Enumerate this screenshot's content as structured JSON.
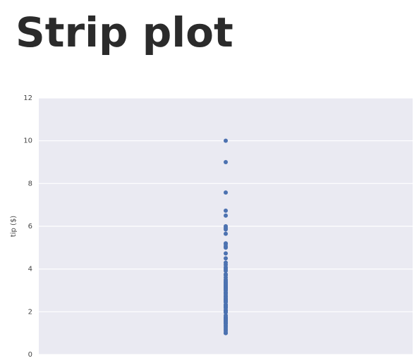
{
  "chart_data": {
    "type": "strip",
    "title": "Strip plot",
    "ylabel": "tip ($)",
    "values": [
      10,
      9,
      7.58,
      6.73,
      6.5,
      6,
      5.92,
      5.85,
      5.65,
      5.2,
      5.17,
      5.07,
      5,
      4.73,
      4.5,
      4.3,
      4.2,
      4.08,
      4,
      3.92,
      3.76,
      3.71,
      3.6,
      3.5,
      3.48,
      3.41,
      3.39,
      3.35,
      3.31,
      3.27,
      3.23,
      3.21,
      3.18,
      3.15,
      3.12,
      3.11,
      3.09,
      3.08,
      3.07,
      3.06,
      3.02,
      3,
      2.92,
      2.88,
      2.83,
      2.75,
      2.72,
      2.71,
      2.64,
      2.6,
      2.56,
      2.55,
      2.54,
      2.5,
      2.47,
      2.45,
      2.34,
      2.31,
      2.3,
      2.24,
      2.23,
      2.2,
      2.18,
      2.09,
      2.05,
      2.03,
      2.02,
      2.01,
      2,
      1.97,
      1.83,
      1.76,
      1.73,
      1.71,
      1.68,
      1.66,
      1.64,
      1.61,
      1.58,
      1.57,
      1.56,
      1.5,
      1.48,
      1.47,
      1.45,
      1.44,
      1.36,
      1.32,
      1.25,
      1.17,
      1.1,
      1.01,
      1
    ],
    "color": "#4c72b0",
    "ylim": [
      0,
      12
    ],
    "yticks": [
      0,
      2,
      4,
      6,
      8,
      10,
      12
    ],
    "grid": true
  }
}
